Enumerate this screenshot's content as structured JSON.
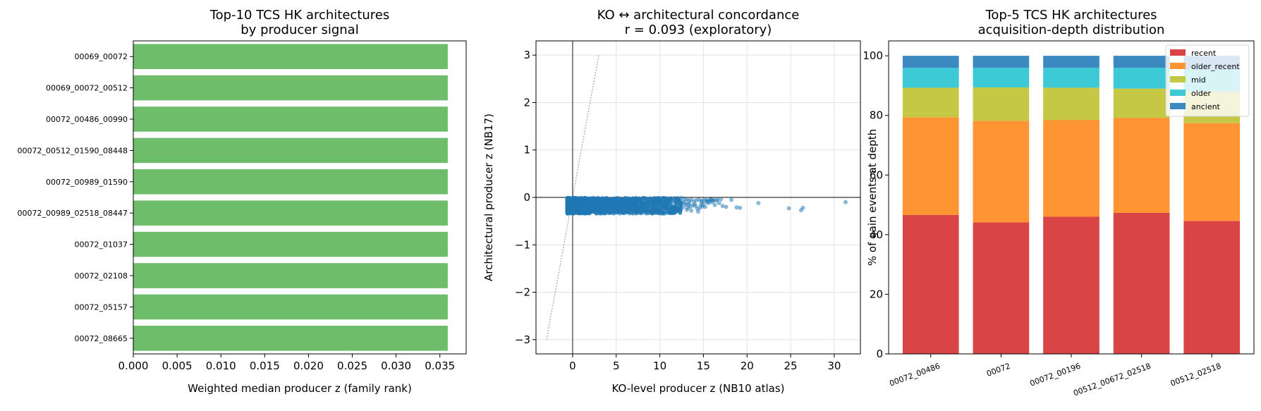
{
  "chart_data": [
    {
      "type": "bar",
      "orientation": "horizontal",
      "title": "Top-10 TCS HK architectures\nby producer signal",
      "xlabel": "Weighted median producer z (family rank)",
      "ylabel": "",
      "categories": [
        "00069_00072",
        "00069_00072_00512",
        "00072_00486_00990",
        "00072_00512_01590_08448",
        "00072_00989_01590",
        "00072_00989_02518_08447",
        "00072_01037",
        "00072_02108",
        "00072_05157",
        "00072_08665"
      ],
      "values": [
        0.0359,
        0.0359,
        0.0359,
        0.0359,
        0.0359,
        0.0359,
        0.0359,
        0.0359,
        0.0359,
        0.0359
      ],
      "xlim": [
        0,
        0.038
      ],
      "xticks": [
        "0.000",
        "0.005",
        "0.010",
        "0.015",
        "0.020",
        "0.025",
        "0.030",
        "0.035"
      ],
      "color": "#6dbd6a"
    },
    {
      "type": "scatter",
      "title": "KO ↔ architectural concordance\nr = 0.093 (exploratory)",
      "xlabel": "KO-level producer z (NB10 atlas)",
      "ylabel": "Architectural producer z (NB17)",
      "xlim": [
        -4.2,
        33
      ],
      "ylim": [
        -3.3,
        3.3
      ],
      "xticks": [
        0,
        5,
        10,
        15,
        20,
        25,
        30
      ],
      "yticks": [
        -3,
        -2,
        -1,
        0,
        1,
        2,
        3
      ],
      "grid": true,
      "reference_lines": {
        "x": 0,
        "y": 0,
        "diagonal": [
          [
            -3,
            -3
          ],
          [
            3,
            3
          ]
        ]
      },
      "color": "#1f77b4",
      "points": [
        [
          13.1,
          -0.04
        ],
        [
          13.3,
          -0.07
        ],
        [
          13.6,
          -0.05
        ],
        [
          13.9,
          -0.08
        ],
        [
          14.2,
          -0.06
        ],
        [
          14.5,
          -0.05
        ],
        [
          14.8,
          -0.1
        ],
        [
          15.1,
          -0.04
        ],
        [
          15.3,
          -0.07
        ],
        [
          15.5,
          -0.06
        ],
        [
          15.8,
          -0.05
        ],
        [
          16.2,
          -0.06
        ],
        [
          16.6,
          -0.04
        ],
        [
          13.4,
          -0.12
        ],
        [
          14.0,
          -0.14
        ],
        [
          14.7,
          -0.16
        ],
        [
          15.4,
          -0.1
        ],
        [
          15.9,
          -0.05
        ],
        [
          16.5,
          -0.07
        ],
        [
          17.0,
          -0.04
        ],
        [
          13.5,
          -0.2
        ],
        [
          14.1,
          -0.18
        ],
        [
          14.6,
          -0.22
        ],
        [
          13.2,
          -0.22
        ],
        [
          15.0,
          -0.14
        ],
        [
          15.6,
          -0.12
        ],
        [
          16.0,
          -0.1
        ],
        [
          13.6,
          -0.28
        ],
        [
          14.4,
          -0.3
        ],
        [
          13.0,
          -0.15
        ],
        [
          12.8,
          -0.05
        ],
        [
          12.9,
          -0.12
        ],
        [
          12.7,
          -0.2
        ],
        [
          16.3,
          -0.16
        ],
        [
          16.8,
          -0.12
        ],
        [
          15.2,
          -0.2
        ],
        [
          14.3,
          -0.24
        ],
        [
          13.8,
          -0.17
        ],
        [
          14.9,
          -0.19
        ],
        [
          13.1,
          -0.26
        ],
        [
          17.2,
          -0.18
        ],
        [
          17.6,
          -0.2
        ],
        [
          18.2,
          -0.05
        ],
        [
          18.8,
          -0.21
        ],
        [
          19.2,
          -0.22
        ],
        [
          21.3,
          -0.12
        ],
        [
          24.8,
          -0.23
        ],
        [
          26.2,
          -0.27
        ],
        [
          26.4,
          -0.22
        ],
        [
          31.3,
          -0.1
        ],
        [
          13.3,
          -0.16
        ],
        [
          14.8,
          -0.07
        ],
        [
          15.7,
          -0.08
        ],
        [
          16.1,
          -0.06
        ],
        [
          12.6,
          -0.1
        ]
      ],
      "dense_cluster": {
        "x_range": [
          -0.6,
          12.5
        ],
        "y_range": [
          -0.34,
          -0.01
        ],
        "count": 2000
      }
    },
    {
      "type": "bar",
      "stacked": true,
      "title": "Top-5 TCS HK architectures\nacquisition-depth distribution",
      "xlabel": "",
      "ylabel": "% of gain events at depth",
      "categories": [
        "00072_00486",
        "00072",
        "00072_00196",
        "00512_00672_02518",
        "00512_02518"
      ],
      "ylim": [
        0,
        105
      ],
      "yticks": [
        0,
        20,
        40,
        60,
        80,
        100
      ],
      "legend": "top-right",
      "series": [
        {
          "name": "recent",
          "color": "#d94545",
          "values": [
            46.6,
            44.1,
            46.0,
            47.3,
            44.6
          ]
        },
        {
          "name": "older_recent",
          "color": "#ff9433",
          "values": [
            32.8,
            34.1,
            32.5,
            31.9,
            32.8
          ]
        },
        {
          "name": "mid",
          "color": "#c5c845",
          "values": [
            9.9,
            11.2,
            10.8,
            9.8,
            10.6
          ]
        },
        {
          "name": "older",
          "color": "#3dc9d6",
          "values": [
            6.7,
            6.6,
            6.7,
            7.0,
            7.3
          ]
        },
        {
          "name": "ancient",
          "color": "#3c89c2",
          "values": [
            4.0,
            4.0,
            4.0,
            4.0,
            4.7
          ]
        }
      ]
    }
  ]
}
